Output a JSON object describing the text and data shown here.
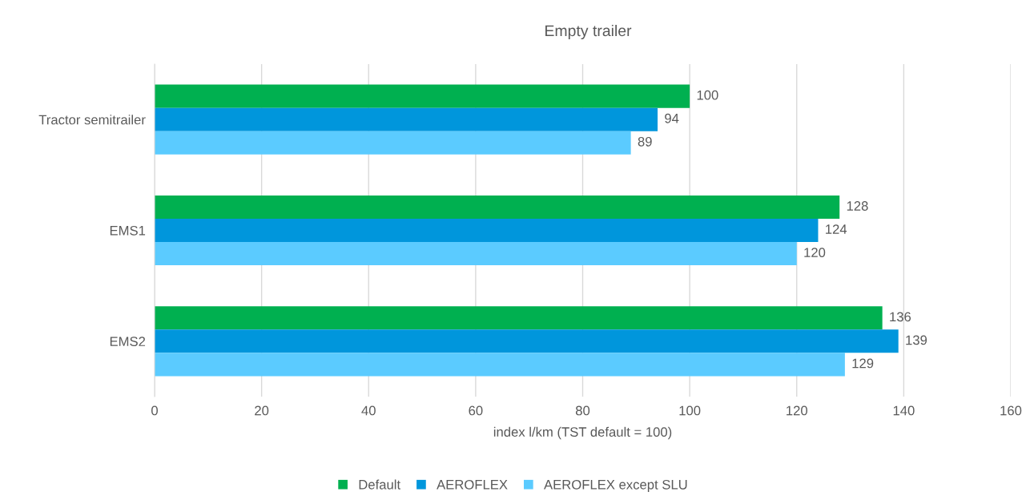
{
  "chart_data": {
    "type": "bar",
    "orientation": "horizontal",
    "title": "Empty trailer",
    "xlabel": "index l/km (TST default = 100)",
    "categories": [
      "Tractor semitrailer",
      "EMS1",
      "EMS2"
    ],
    "series": [
      {
        "name": "Default",
        "color": "#00b050",
        "values": [
          100,
          128,
          136
        ]
      },
      {
        "name": "AEROFLEX",
        "color": "#0096dc",
        "values": [
          94,
          124,
          139
        ]
      },
      {
        "name": "AEROFLEX except SLU",
        "color": "#5bcbff",
        "values": [
          89,
          120,
          129
        ]
      }
    ],
    "xlim": [
      0,
      160
    ],
    "xticks": [
      0,
      20,
      40,
      60,
      80,
      100,
      120,
      140,
      160
    ],
    "grid": "x",
    "legend": "bottom",
    "data_labels": true
  }
}
